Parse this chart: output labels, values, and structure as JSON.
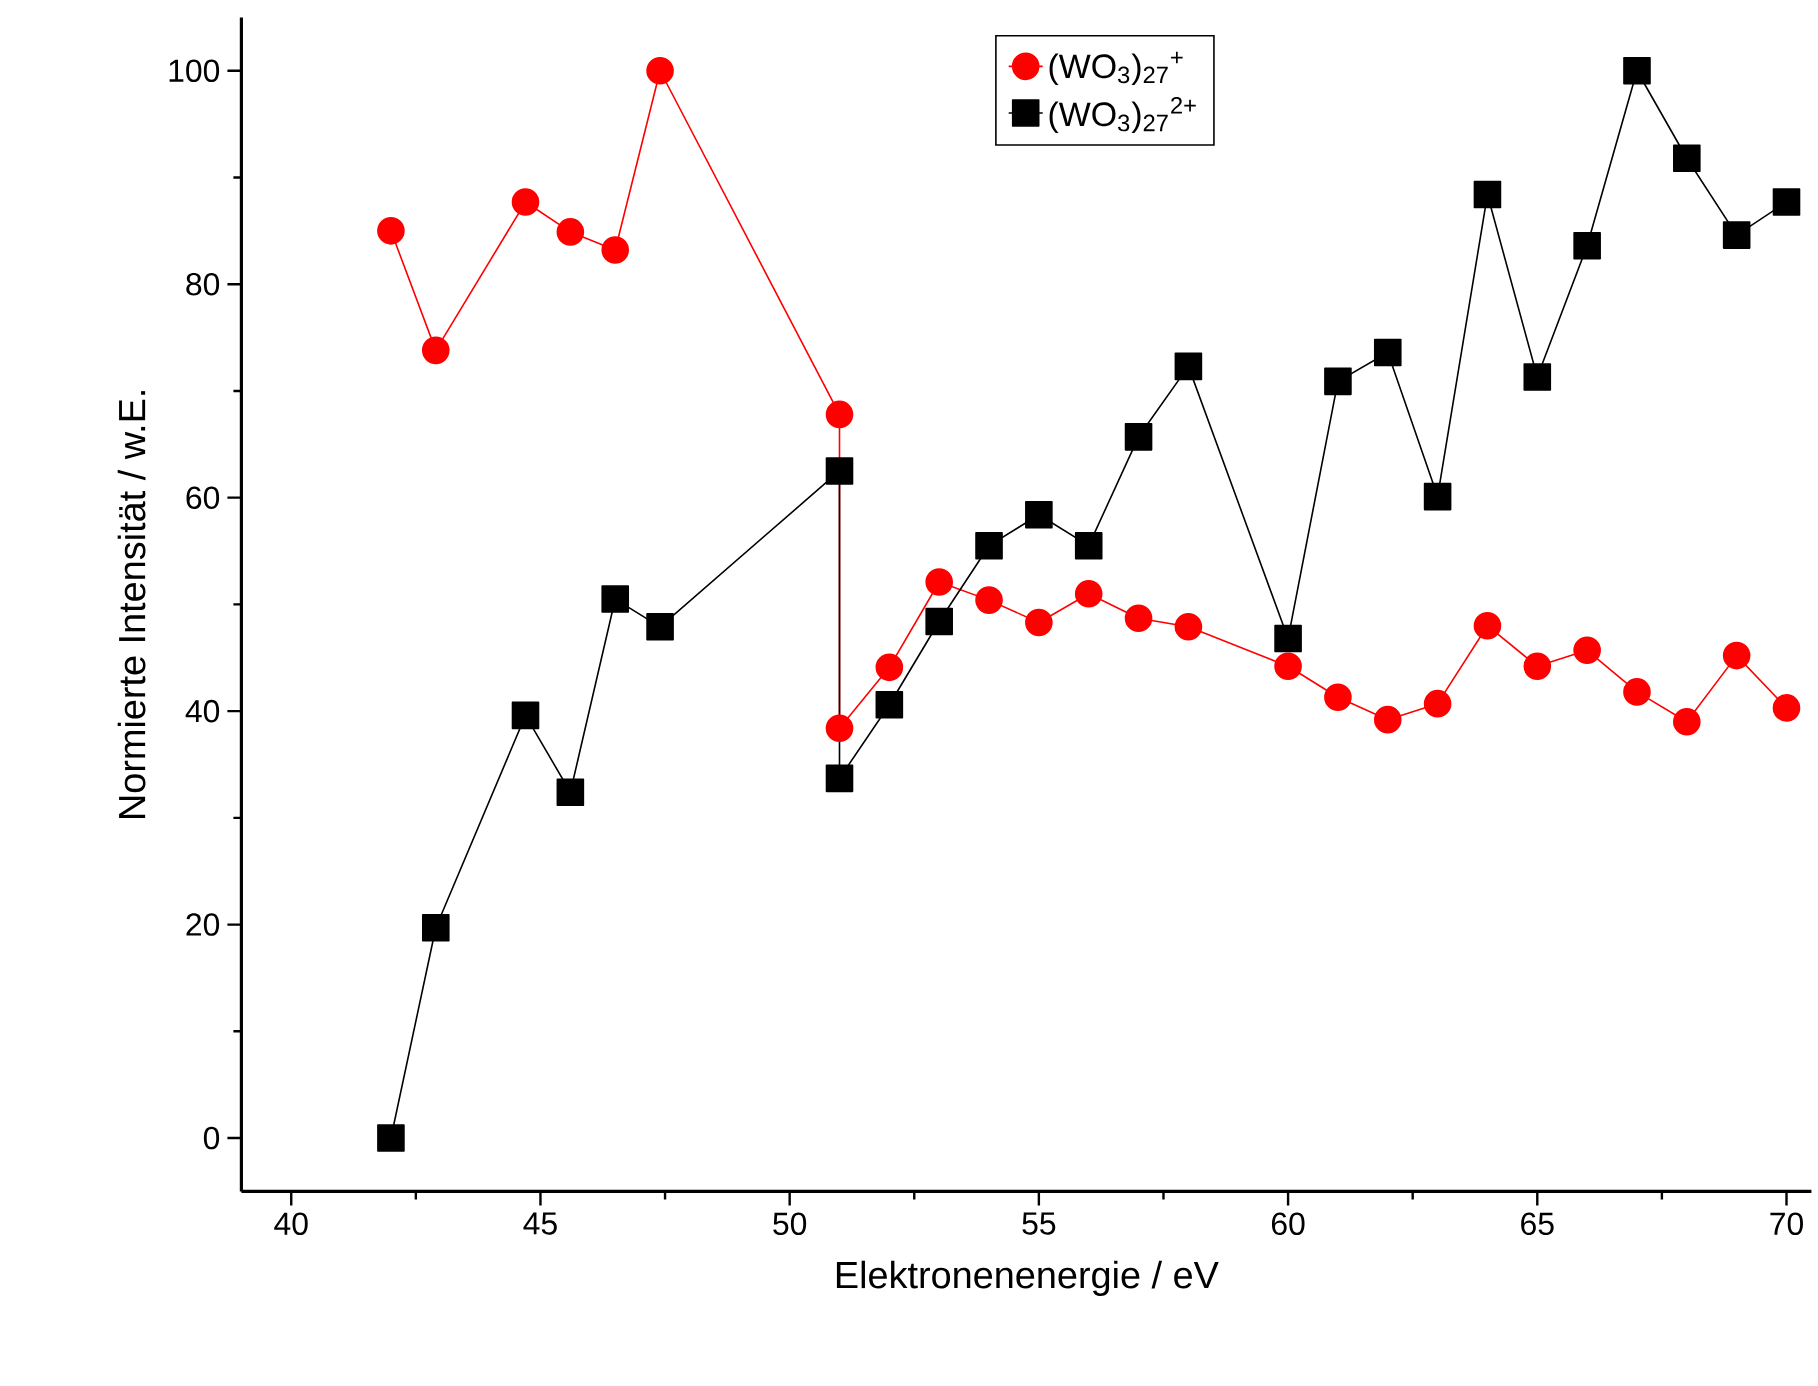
{
  "chart_data": {
    "type": "line",
    "xlabel": "Elektronenenergie / eV",
    "ylabel": "Normierte Intensität / w.E.",
    "xlim": [
      39,
      70.5
    ],
    "ylim": [
      -5,
      105
    ],
    "xticks": [
      40,
      45,
      50,
      55,
      60,
      65,
      70
    ],
    "yticks": [
      0,
      20,
      40,
      60,
      80,
      100
    ],
    "grid": false,
    "legend": "top",
    "series": [
      {
        "name": "(WO$_{3}$)$_{27}$$^{+}$",
        "color": "#ff0000",
        "marker": "circle",
        "x": [
          42,
          42.9,
          44.7,
          45.6,
          46.5,
          47.4,
          51,
          51,
          52,
          53,
          54,
          55,
          56,
          57,
          58,
          60,
          61,
          62,
          63,
          64,
          65,
          66,
          67,
          68,
          69,
          70
        ],
        "values": [
          85,
          73.8,
          87.7,
          84.9,
          83.2,
          100,
          67.8,
          38.4,
          44.1,
          52.1,
          50.4,
          48.3,
          51.0,
          48.7,
          47.9,
          44.2,
          41.3,
          39.2,
          40.7,
          48.0,
          44.2,
          45.7,
          41.8,
          39.0,
          45.2,
          40.3
        ]
      },
      {
        "name": "(WO$_{3}$)$_{27}$$^{2+}$",
        "color": "#000000",
        "marker": "square",
        "x": [
          42,
          42.9,
          44.7,
          45.6,
          46.5,
          47.4,
          51,
          51,
          52,
          53,
          54,
          55,
          56,
          57,
          58,
          60,
          61,
          62,
          63,
          64,
          65,
          66,
          67,
          68,
          69,
          70
        ],
        "values": [
          0,
          19.7,
          39.6,
          32.4,
          50.5,
          47.9,
          62.5,
          33.7,
          40.6,
          48.4,
          55.5,
          58.4,
          55.5,
          65.7,
          72.3,
          46.8,
          70.9,
          73.6,
          60.1,
          88.4,
          71.3,
          83.6,
          100,
          91.8,
          84.6,
          87.7
        ]
      }
    ]
  }
}
